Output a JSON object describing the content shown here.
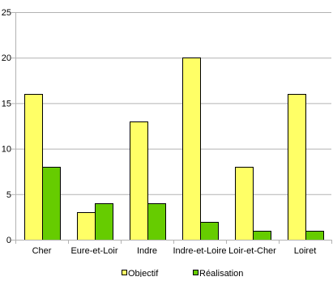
{
  "chart_data": {
    "type": "bar",
    "title": "",
    "xlabel": "",
    "ylabel": "",
    "categories": [
      "Cher",
      "Eure-et-Loir",
      "Indre",
      "Indre-et-Loire",
      "Loir-et-Cher",
      "Loiret"
    ],
    "series": [
      {
        "name": "Objectif",
        "values": [
          16,
          3,
          13,
          20,
          8,
          16
        ],
        "color": "#ffff66"
      },
      {
        "name": "Réalisation",
        "values": [
          8,
          4,
          4,
          2,
          1,
          1
        ],
        "color": "#66cc00"
      }
    ],
    "ylim": [
      0,
      25
    ],
    "yticks": [
      0,
      5,
      10,
      15,
      20,
      25
    ],
    "grid": "horizontal",
    "grid_color": "#b3b3b3",
    "bar_stroke": "#000000",
    "legend_position": "bottom-center"
  }
}
